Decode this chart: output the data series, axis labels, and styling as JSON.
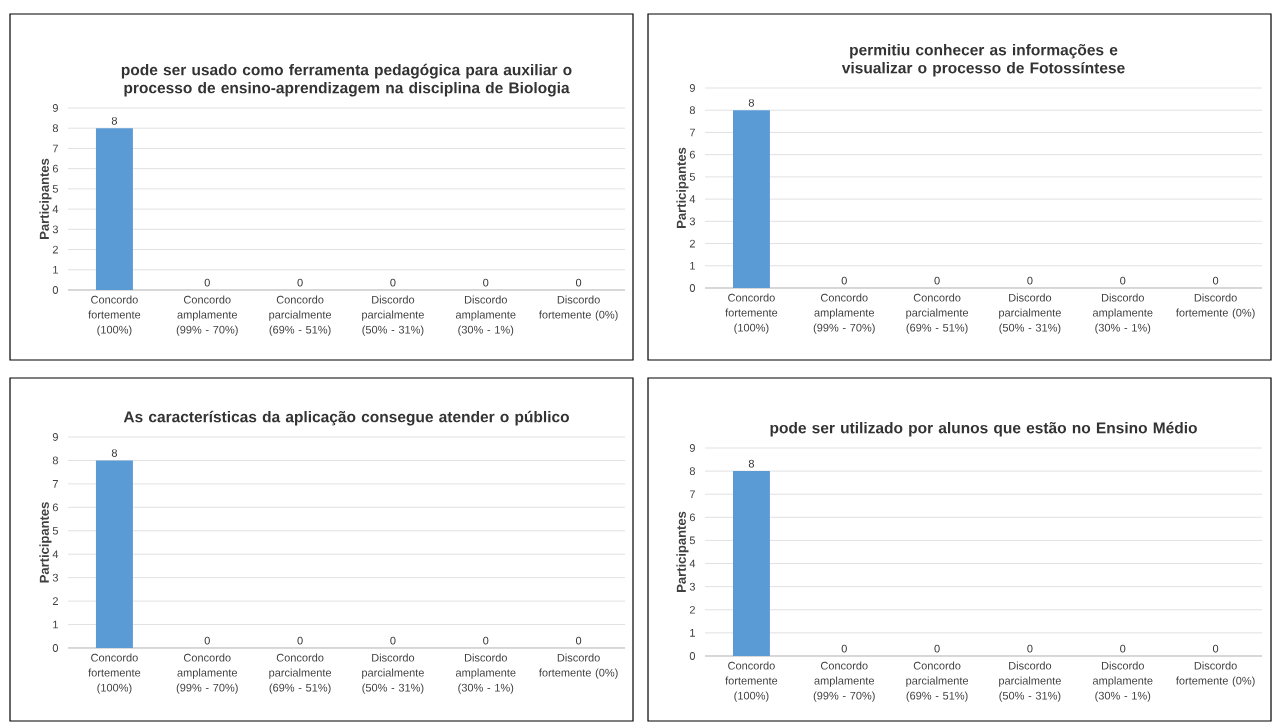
{
  "chart_data": [
    {
      "type": "bar",
      "title": "pode ser usado como ferramenta pedagógica para auxiliar o processo de ensino-aprendizagem na disciplina de Biologia",
      "ylabel": "Participantes",
      "categories": [
        "Concordo fortemente (100%)",
        "Concordo amplamente (99% - 70%)",
        "Concordo parcialmente (69% - 51%)",
        "Discordo parcialmente (50% - 31%)",
        "Discordo amplamente (30% - 1%)",
        "Discordo fortemente (0%)"
      ],
      "values": [
        8,
        0,
        0,
        0,
        0,
        0
      ],
      "color": "#5b9bd5",
      "ylim": [
        0,
        9
      ],
      "yticks": [
        0,
        1,
        2,
        3,
        4,
        5,
        6,
        7,
        8,
        9
      ],
      "grid": "y",
      "data_labels": true
    },
    {
      "type": "bar",
      "title": "permitiu conhecer as informações e visualizar o processo de Fotossíntese",
      "ylabel": "Participantes",
      "categories": [
        "Concordo fortemente (100%)",
        "Concordo amplamente (99% - 70%)",
        "Concordo parcialmente (69% - 51%)",
        "Discordo parcialmente (50% - 31%)",
        "Discordo amplamente (30% - 1%)",
        "Discordo fortemente (0%)"
      ],
      "values": [
        8,
        0,
        0,
        0,
        0,
        0
      ],
      "color": "#5b9bd5",
      "ylim": [
        0,
        9
      ],
      "yticks": [
        0,
        1,
        2,
        3,
        4,
        5,
        6,
        7,
        8,
        9
      ],
      "grid": "y",
      "data_labels": true
    },
    {
      "type": "bar",
      "title": "As características da aplicação consegue atender o público",
      "ylabel": "Participantes",
      "categories": [
        "Concordo fortemente (100%)",
        "Concordo amplamente (99% - 70%)",
        "Concordo parcialmente (69% - 51%)",
        "Discordo parcialmente (50% - 31%)",
        "Discordo amplamente (30% - 1%)",
        "Discordo fortemente (0%)"
      ],
      "values": [
        8,
        0,
        0,
        0,
        0,
        0
      ],
      "color": "#5b9bd5",
      "ylim": [
        0,
        9
      ],
      "yticks": [
        0,
        1,
        2,
        3,
        4,
        5,
        6,
        7,
        8,
        9
      ],
      "grid": "y",
      "data_labels": true
    },
    {
      "type": "bar",
      "title": "pode ser utilizado por alunos que estão no Ensino Médio",
      "ylabel": "Participantes",
      "categories": [
        "Concordo fortemente (100%)",
        "Concordo amplamente (99% - 70%)",
        "Concordo parcialmente (69% - 51%)",
        "Discordo parcialmente (50% - 31%)",
        "Discordo amplamente (30% - 1%)",
        "Discordo fortemente (0%)"
      ],
      "values": [
        8,
        0,
        0,
        0,
        0,
        0
      ],
      "color": "#5b9bd5",
      "ylim": [
        0,
        9
      ],
      "yticks": [
        0,
        1,
        2,
        3,
        4,
        5,
        6,
        7,
        8,
        9
      ],
      "grid": "y",
      "data_labels": true
    }
  ]
}
